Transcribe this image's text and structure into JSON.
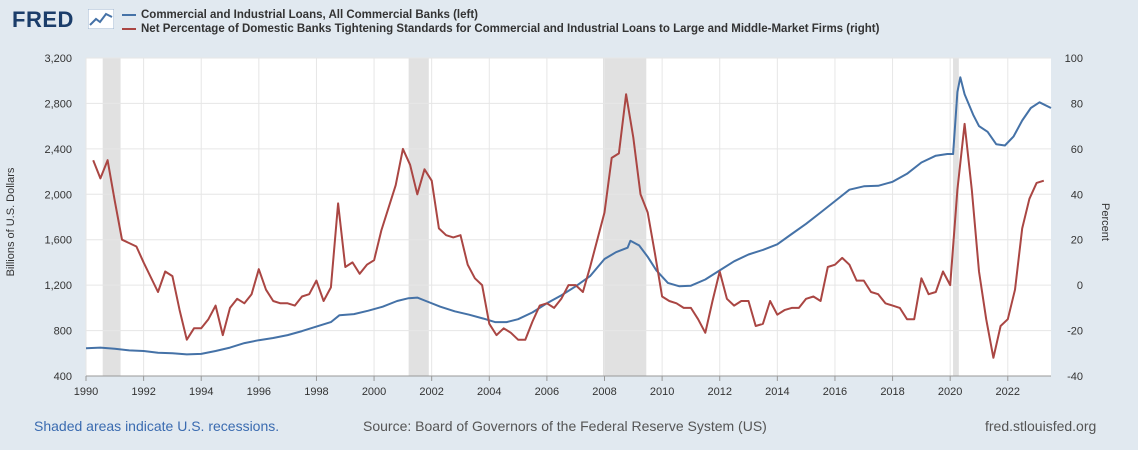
{
  "header": {
    "logo_text": "FRED",
    "logo_icon": "line-chart-icon"
  },
  "legend": [
    {
      "label": "Commercial and Industrial Loans, All Commercial Banks (left)",
      "color": "#4572a7"
    },
    {
      "label": "Net Percentage of Domestic Banks Tightening Standards for Commercial and Industrial Loans to Large and Middle-Market Firms (right)",
      "color": "#aa4643"
    }
  ],
  "footer": {
    "recession_note": "Shaded areas indicate U.S. recessions.",
    "source": "Source: Board of Governors of the Federal Reserve System (US)",
    "site": "fred.stlouisfed.org"
  },
  "chart_data": {
    "type": "line",
    "ylabel_left": "Billions of U.S. Dollars",
    "ylabel_right": "Percent",
    "xlim": [
      1990.0,
      2023.5
    ],
    "ylim_left": [
      400,
      3200
    ],
    "ylim_right": [
      -40,
      100
    ],
    "x_ticks": [
      "1990",
      "1992",
      "1994",
      "1996",
      "1998",
      "2000",
      "2002",
      "2004",
      "2006",
      "2008",
      "2010",
      "2012",
      "2014",
      "2016",
      "2018",
      "2020",
      "2022"
    ],
    "y_ticks_left": [
      "400",
      "800",
      "1,200",
      "1,600",
      "2,000",
      "2,400",
      "2,800",
      "3,200"
    ],
    "y_ticks_right": [
      "-40",
      "-20",
      "0",
      "20",
      "40",
      "60",
      "80",
      "100"
    ],
    "grid": true,
    "recessions": [
      [
        1990.58,
        1991.2
      ],
      [
        2001.2,
        2001.9
      ],
      [
        2007.95,
        2009.45
      ],
      [
        2020.1,
        2020.3
      ]
    ],
    "recession_color": "#e1e1e1",
    "series": [
      {
        "name": "Commercial and Industrial Loans, All Commercial Banks (left)",
        "axis": "left",
        "color": "#4572a7",
        "points": [
          [
            1990.0,
            645
          ],
          [
            1990.5,
            650
          ],
          [
            1991.0,
            640
          ],
          [
            1991.5,
            625
          ],
          [
            1992.0,
            620
          ],
          [
            1992.5,
            605
          ],
          [
            1993.0,
            600
          ],
          [
            1993.5,
            590
          ],
          [
            1994.0,
            595
          ],
          [
            1994.5,
            620
          ],
          [
            1995.0,
            650
          ],
          [
            1995.5,
            690
          ],
          [
            1996.0,
            715
          ],
          [
            1996.5,
            735
          ],
          [
            1997.0,
            760
          ],
          [
            1997.5,
            795
          ],
          [
            1998.0,
            835
          ],
          [
            1998.5,
            875
          ],
          [
            1998.8,
            935
          ],
          [
            1999.3,
            945
          ],
          [
            1999.8,
            975
          ],
          [
            2000.3,
            1010
          ],
          [
            2000.8,
            1060
          ],
          [
            2001.2,
            1085
          ],
          [
            2001.5,
            1090
          ],
          [
            2001.8,
            1060
          ],
          [
            2002.3,
            1010
          ],
          [
            2002.8,
            970
          ],
          [
            2003.3,
            940
          ],
          [
            2003.8,
            905
          ],
          [
            2004.2,
            875
          ],
          [
            2004.6,
            875
          ],
          [
            2005.0,
            900
          ],
          [
            2005.5,
            960
          ],
          [
            2006.0,
            1040
          ],
          [
            2006.5,
            1110
          ],
          [
            2007.0,
            1190
          ],
          [
            2007.5,
            1280
          ],
          [
            2008.0,
            1430
          ],
          [
            2008.4,
            1490
          ],
          [
            2008.8,
            1530
          ],
          [
            2008.9,
            1590
          ],
          [
            2009.2,
            1550
          ],
          [
            2009.5,
            1450
          ],
          [
            2009.8,
            1330
          ],
          [
            2010.2,
            1220
          ],
          [
            2010.6,
            1190
          ],
          [
            2011.0,
            1195
          ],
          [
            2011.5,
            1250
          ],
          [
            2012.0,
            1330
          ],
          [
            2012.5,
            1410
          ],
          [
            2013.0,
            1470
          ],
          [
            2013.5,
            1510
          ],
          [
            2014.0,
            1560
          ],
          [
            2014.5,
            1650
          ],
          [
            2015.0,
            1740
          ],
          [
            2015.5,
            1840
          ],
          [
            2016.0,
            1940
          ],
          [
            2016.5,
            2040
          ],
          [
            2017.0,
            2070
          ],
          [
            2017.5,
            2075
          ],
          [
            2018.0,
            2110
          ],
          [
            2018.5,
            2180
          ],
          [
            2019.0,
            2280
          ],
          [
            2019.5,
            2340
          ],
          [
            2019.9,
            2355
          ],
          [
            2020.1,
            2355
          ],
          [
            2020.25,
            2900
          ],
          [
            2020.35,
            3030
          ],
          [
            2020.5,
            2880
          ],
          [
            2020.8,
            2700
          ],
          [
            2021.0,
            2600
          ],
          [
            2021.3,
            2550
          ],
          [
            2021.6,
            2440
          ],
          [
            2021.9,
            2430
          ],
          [
            2022.2,
            2510
          ],
          [
            2022.5,
            2650
          ],
          [
            2022.8,
            2760
          ],
          [
            2023.1,
            2810
          ],
          [
            2023.5,
            2760
          ]
        ]
      },
      {
        "name": "Net Percentage of Domestic Banks Tightening Standards for Commercial and Industrial Loans to Large and Middle-Market Firms (right)",
        "axis": "right",
        "color": "#aa4643",
        "points": [
          [
            1990.25,
            55
          ],
          [
            1990.5,
            47
          ],
          [
            1990.75,
            55
          ],
          [
            1991.0,
            37
          ],
          [
            1991.25,
            20
          ],
          [
            1991.75,
            17
          ],
          [
            1992.0,
            10
          ],
          [
            1992.5,
            -3
          ],
          [
            1992.75,
            6
          ],
          [
            1993.0,
            4
          ],
          [
            1993.25,
            -11
          ],
          [
            1993.5,
            -24
          ],
          [
            1993.75,
            -19
          ],
          [
            1994.0,
            -19
          ],
          [
            1994.25,
            -15
          ],
          [
            1994.5,
            -9
          ],
          [
            1994.75,
            -22
          ],
          [
            1995.0,
            -10
          ],
          [
            1995.25,
            -6
          ],
          [
            1995.5,
            -8
          ],
          [
            1995.75,
            -4
          ],
          [
            1996.0,
            7
          ],
          [
            1996.25,
            -2
          ],
          [
            1996.5,
            -7
          ],
          [
            1996.75,
            -8
          ],
          [
            1997.0,
            -8
          ],
          [
            1997.25,
            -9
          ],
          [
            1997.5,
            -5
          ],
          [
            1997.75,
            -4
          ],
          [
            1998.0,
            2
          ],
          [
            1998.25,
            -7
          ],
          [
            1998.5,
            -1
          ],
          [
            1998.75,
            36
          ],
          [
            1999.0,
            8
          ],
          [
            1999.25,
            10
          ],
          [
            1999.5,
            5
          ],
          [
            1999.75,
            9
          ],
          [
            2000.0,
            11
          ],
          [
            2000.25,
            24
          ],
          [
            2000.75,
            44
          ],
          [
            2001.0,
            60
          ],
          [
            2001.25,
            53
          ],
          [
            2001.5,
            40
          ],
          [
            2001.75,
            51
          ],
          [
            2002.0,
            46
          ],
          [
            2002.25,
            25
          ],
          [
            2002.5,
            22
          ],
          [
            2002.75,
            21
          ],
          [
            2003.0,
            22
          ],
          [
            2003.25,
            9
          ],
          [
            2003.5,
            3
          ],
          [
            2003.75,
            0
          ],
          [
            2004.0,
            -17
          ],
          [
            2004.25,
            -22
          ],
          [
            2004.5,
            -19
          ],
          [
            2004.75,
            -21
          ],
          [
            2005.0,
            -24
          ],
          [
            2005.25,
            -24
          ],
          [
            2005.5,
            -16
          ],
          [
            2005.75,
            -9
          ],
          [
            2006.0,
            -8
          ],
          [
            2006.25,
            -10
          ],
          [
            2006.5,
            -6
          ],
          [
            2006.75,
            0
          ],
          [
            2007.0,
            0
          ],
          [
            2007.25,
            -3
          ],
          [
            2007.5,
            8
          ],
          [
            2007.75,
            20
          ],
          [
            2008.0,
            32
          ],
          [
            2008.25,
            56
          ],
          [
            2008.5,
            58
          ],
          [
            2008.75,
            84
          ],
          [
            2009.0,
            65
          ],
          [
            2009.25,
            40
          ],
          [
            2009.5,
            32
          ],
          [
            2009.75,
            14
          ],
          [
            2010.0,
            -5
          ],
          [
            2010.25,
            -7
          ],
          [
            2010.5,
            -8
          ],
          [
            2010.75,
            -10
          ],
          [
            2011.0,
            -10
          ],
          [
            2011.25,
            -15
          ],
          [
            2011.5,
            -21
          ],
          [
            2011.75,
            -7
          ],
          [
            2012.0,
            6
          ],
          [
            2012.25,
            -6
          ],
          [
            2012.5,
            -9
          ],
          [
            2012.75,
            -7
          ],
          [
            2013.0,
            -7
          ],
          [
            2013.25,
            -18
          ],
          [
            2013.5,
            -17
          ],
          [
            2013.75,
            -7
          ],
          [
            2014.0,
            -13
          ],
          [
            2014.25,
            -11
          ],
          [
            2014.5,
            -10
          ],
          [
            2014.75,
            -10
          ],
          [
            2015.0,
            -6
          ],
          [
            2015.25,
            -5
          ],
          [
            2015.5,
            -7
          ],
          [
            2015.75,
            8
          ],
          [
            2016.0,
            9
          ],
          [
            2016.25,
            12
          ],
          [
            2016.5,
            9
          ],
          [
            2016.75,
            2
          ],
          [
            2017.0,
            2
          ],
          [
            2017.25,
            -3
          ],
          [
            2017.5,
            -4
          ],
          [
            2017.75,
            -8
          ],
          [
            2018.0,
            -9
          ],
          [
            2018.25,
            -10
          ],
          [
            2018.5,
            -15
          ],
          [
            2018.75,
            -15
          ],
          [
            2019.0,
            3
          ],
          [
            2019.25,
            -4
          ],
          [
            2019.5,
            -3
          ],
          [
            2019.75,
            6
          ],
          [
            2020.0,
            0
          ],
          [
            2020.25,
            42
          ],
          [
            2020.5,
            71
          ],
          [
            2020.75,
            42
          ],
          [
            2021.0,
            6
          ],
          [
            2021.25,
            -15
          ],
          [
            2021.5,
            -32
          ],
          [
            2021.75,
            -18
          ],
          [
            2022.0,
            -15
          ],
          [
            2022.25,
            -2
          ],
          [
            2022.5,
            25
          ],
          [
            2022.75,
            38
          ],
          [
            2023.0,
            45
          ],
          [
            2023.25,
            46
          ]
        ]
      }
    ]
  }
}
